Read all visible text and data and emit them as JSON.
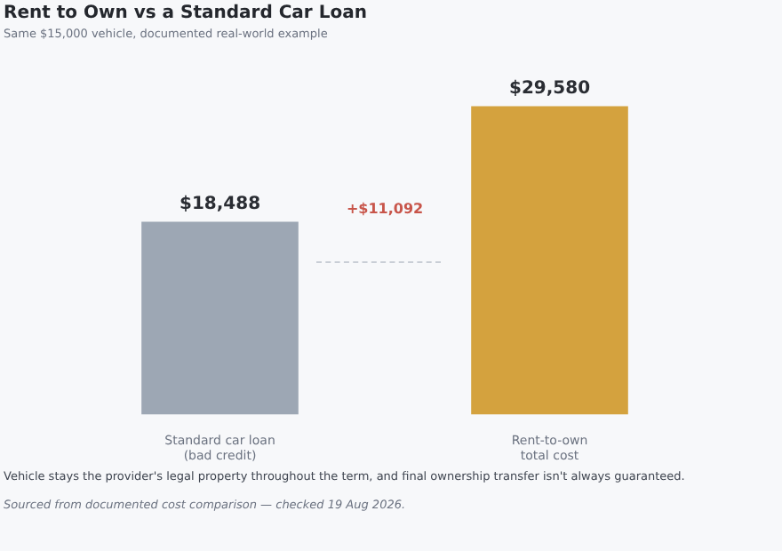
{
  "chart_data": {
    "type": "bar",
    "title": "Rent to Own vs a Standard Car Loan",
    "subtitle": "Same $15,000 vehicle, documented real-world example",
    "categories": [
      "Standard car loan\n(bad credit)",
      "Rent-to-own\ntotal cost"
    ],
    "values": [
      18488,
      29580
    ],
    "colors": [
      "#9da7b4",
      "#d4a23e"
    ],
    "value_labels": [
      "$18,488",
      "$29,580"
    ],
    "tick_labels": "x",
    "grid": false,
    "legend": false,
    "annotations": [
      "+$11,092",
      "Vehicle stays the provider's legal property throughout the term, and final ownership transfer isn't always guaranteed.",
      "Sourced from documented cost comparison — checked 19 Aug 2026."
    ]
  }
}
